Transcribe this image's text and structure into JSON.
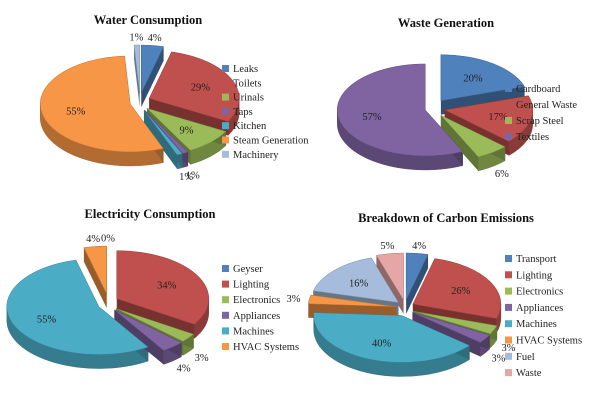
{
  "chart_data": [
    {
      "type": "pie",
      "title": "Water Consumption",
      "categories": [
        "Leaks",
        "Toilets",
        "Urinals",
        "Taps",
        "Kitchen",
        "Steam Generation",
        "Machinery"
      ],
      "values": [
        4,
        29,
        9,
        1,
        1,
        55,
        1
      ],
      "data_labels": [
        "4%",
        "29%",
        "9%",
        "1%",
        "1%",
        "55%",
        "1%"
      ],
      "colors": [
        "#4f81bd",
        "#c0504d",
        "#9bbb59",
        "#8064a2",
        "#4bacc6",
        "#f79646",
        "#a6bcdc"
      ],
      "explode": true,
      "legend": "right"
    },
    {
      "type": "pie",
      "title": "Waste Generation",
      "categories": [
        "Cardboard",
        "General Waste",
        "Scrap Steel",
        "Textiles"
      ],
      "values": [
        20,
        17,
        6,
        57
      ],
      "data_labels": [
        "20%",
        "17%",
        "6%",
        "57%"
      ],
      "colors": [
        "#4f81bd",
        "#c0504d",
        "#9bbb59",
        "#8064a2"
      ],
      "explode": true,
      "legend": "right"
    },
    {
      "type": "pie",
      "title": "Electricity Consumption",
      "categories": [
        "Geyser",
        "Lighting",
        "Electronics",
        "Appliances",
        "Machines",
        "HVAC Systems"
      ],
      "values": [
        0,
        34,
        3,
        4,
        55,
        4
      ],
      "data_labels": [
        "0%",
        "34%",
        "3%",
        "4%",
        "55%",
        "4%"
      ],
      "colors": [
        "#4f81bd",
        "#c0504d",
        "#9bbb59",
        "#8064a2",
        "#4bacc6",
        "#f79646"
      ],
      "explode": true,
      "legend": "right"
    },
    {
      "type": "pie",
      "title": "Breakdown of Carbon Emissions",
      "categories": [
        "Transport",
        "Lighting",
        "Electronics",
        "Appliances",
        "Machines",
        "HVAC Systems",
        "Fuel",
        "Waste"
      ],
      "values": [
        4,
        26,
        3,
        3,
        40,
        3,
        16,
        5
      ],
      "data_labels": [
        "4%",
        "26%",
        "3%",
        "3%",
        "40%",
        "3%",
        "16%",
        "5%"
      ],
      "colors": [
        "#4f81bd",
        "#c0504d",
        "#9bbb59",
        "#8064a2",
        "#4bacc6",
        "#f79646",
        "#a6bcdc",
        "#e6a6a6"
      ],
      "explode": true,
      "legend": "right"
    }
  ]
}
